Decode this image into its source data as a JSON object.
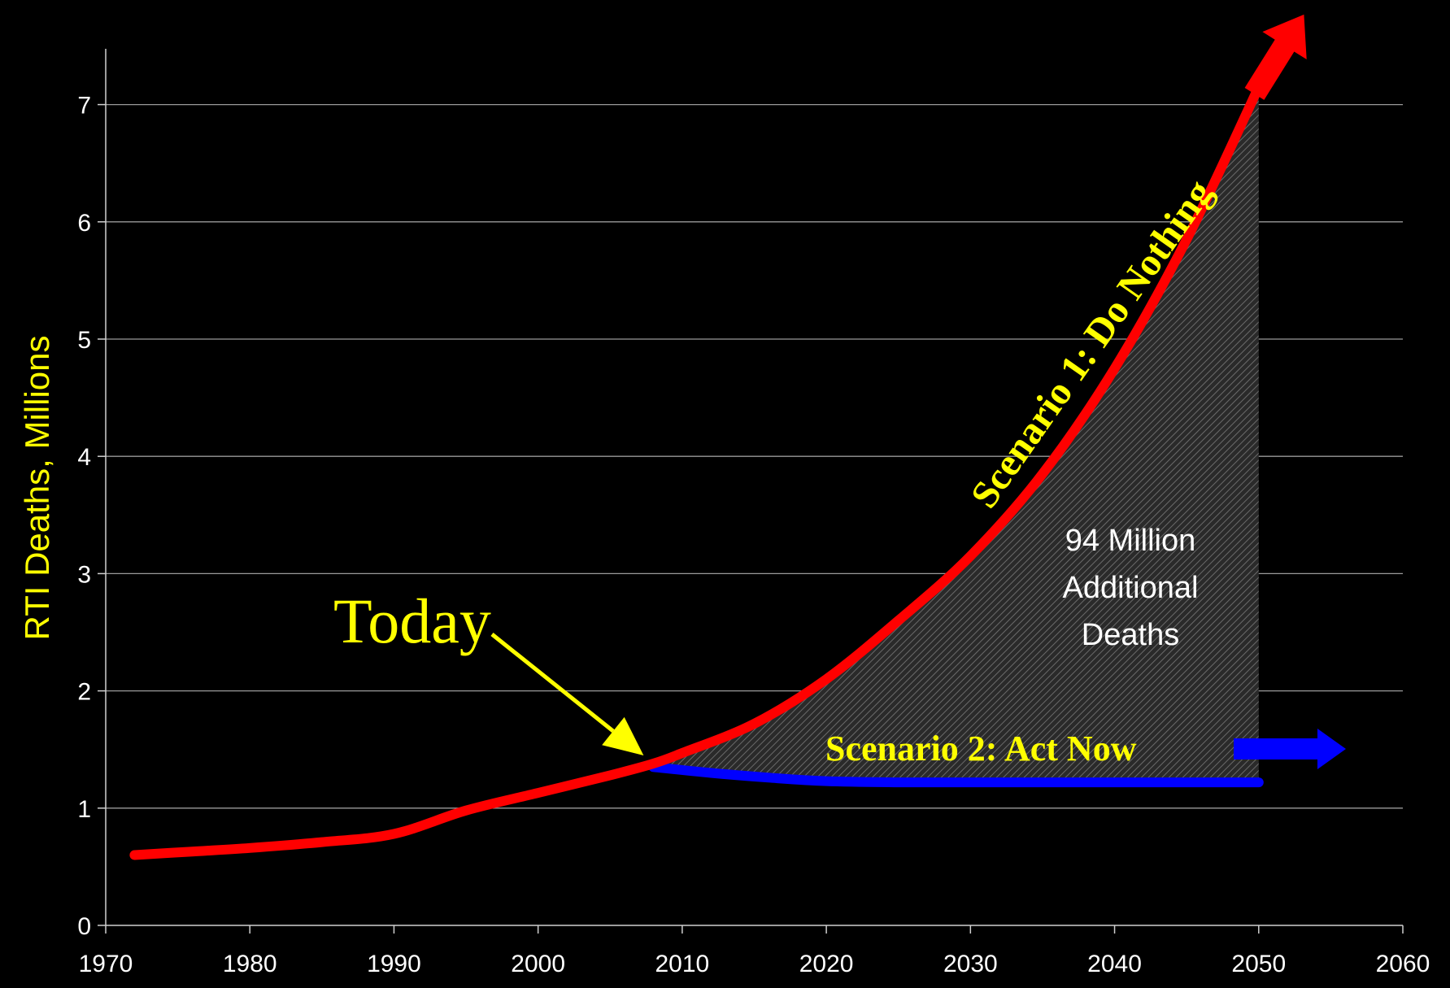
{
  "chart_data": {
    "type": "line",
    "title": "",
    "xlabel": "",
    "ylabel": "RTI Deaths, Millions",
    "xlim": [
      1970,
      2060
    ],
    "ylim": [
      0,
      7.5
    ],
    "x_ticks": [
      1970,
      1980,
      1990,
      2000,
      2010,
      2020,
      2030,
      2040,
      2050,
      2060
    ],
    "y_ticks": [
      0,
      1,
      2,
      3,
      4,
      5,
      6,
      7
    ],
    "grid": "horizontal",
    "colors": {
      "background": "#000000",
      "scenario1": "#ff0000",
      "scenario2": "#0000ff",
      "labels": "#ffff00",
      "area_fill": "#333333"
    },
    "series": [
      {
        "name": "Scenario 1: Do Nothing",
        "color": "#ff0000",
        "points": [
          [
            1972,
            0.6
          ],
          [
            1976,
            0.63
          ],
          [
            1980,
            0.66
          ],
          [
            1985,
            0.71
          ],
          [
            1990,
            0.78
          ],
          [
            1995,
            0.98
          ],
          [
            2000,
            1.13
          ],
          [
            2005,
            1.28
          ],
          [
            2008,
            1.38
          ],
          [
            2010,
            1.47
          ],
          [
            2015,
            1.72
          ],
          [
            2020,
            2.1
          ],
          [
            2025,
            2.6
          ],
          [
            2030,
            3.15
          ],
          [
            2035,
            3.85
          ],
          [
            2040,
            4.75
          ],
          [
            2045,
            5.85
          ],
          [
            2050,
            7.15
          ]
        ]
      },
      {
        "name": "Scenario 2: Act Now",
        "color": "#0000ff",
        "points": [
          [
            2008,
            1.35
          ],
          [
            2012,
            1.3
          ],
          [
            2016,
            1.26
          ],
          [
            2020,
            1.23
          ],
          [
            2025,
            1.22
          ],
          [
            2030,
            1.22
          ],
          [
            2035,
            1.22
          ],
          [
            2040,
            1.22
          ],
          [
            2045,
            1.22
          ],
          [
            2050,
            1.22
          ]
        ]
      }
    ],
    "annotations": {
      "today": {
        "text": "Today",
        "x": 2008,
        "y": 1.38
      },
      "scenario1_label": "Scenario 1: Do Nothing",
      "scenario2_label": "Scenario 2: Act Now",
      "area_label": [
        "94 Million",
        "Additional",
        "Deaths"
      ]
    }
  }
}
